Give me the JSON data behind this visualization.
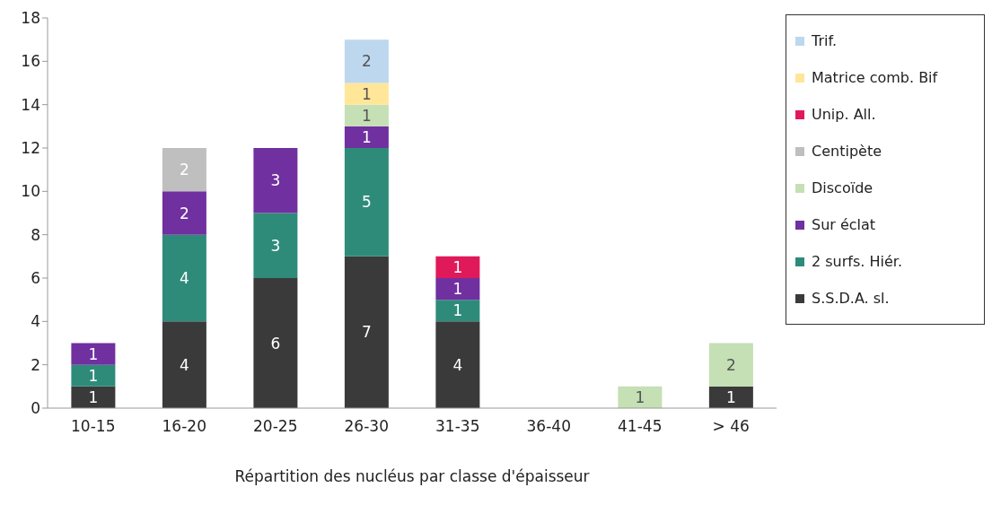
{
  "chart_data": {
    "type": "bar",
    "stacked": true,
    "xlabel": "Répartition des nucléus par classe d'épaisseur",
    "categories": [
      "10-15",
      "16-20",
      "20-25",
      "26-30",
      "31-35",
      "36-40",
      "41-45",
      "> 46"
    ],
    "series": [
      {
        "name": "S.S.D.A. sl.",
        "color": "#3a3a3a",
        "values": [
          1,
          4,
          6,
          7,
          4,
          null,
          null,
          1
        ]
      },
      {
        "name": "2 surfs. Hiér.",
        "color": "#2e8b7a",
        "values": [
          1,
          4,
          3,
          5,
          1,
          null,
          null,
          null
        ]
      },
      {
        "name": "Sur éclat",
        "color": "#7030a0",
        "values": [
          1,
          2,
          3,
          1,
          1,
          null,
          null,
          null
        ]
      },
      {
        "name": "Discoïde",
        "color": "#c5e0b4",
        "values": [
          null,
          null,
          null,
          1,
          null,
          null,
          1,
          2
        ]
      },
      {
        "name": "Centipète",
        "color": "#bfbfbf",
        "values": [
          null,
          2,
          null,
          null,
          null,
          null,
          null,
          null
        ]
      },
      {
        "name": "Unip. All.",
        "color": "#e0195a",
        "values": [
          null,
          null,
          null,
          null,
          1,
          null,
          null,
          null
        ]
      },
      {
        "name": "Matrice comb. Bif",
        "color": "#ffe699",
        "values": [
          null,
          null,
          null,
          1,
          null,
          null,
          null,
          null
        ]
      },
      {
        "name": "Trif.",
        "color": "#bdd7ee",
        "values": [
          null,
          null,
          null,
          2,
          null,
          null,
          null,
          null
        ]
      }
    ],
    "ylim": [
      0,
      18
    ],
    "yticks": [
      0,
      2,
      4,
      6,
      8,
      10,
      12,
      14,
      16,
      18
    ],
    "grid": false,
    "legend": "right",
    "data_labels": true
  }
}
